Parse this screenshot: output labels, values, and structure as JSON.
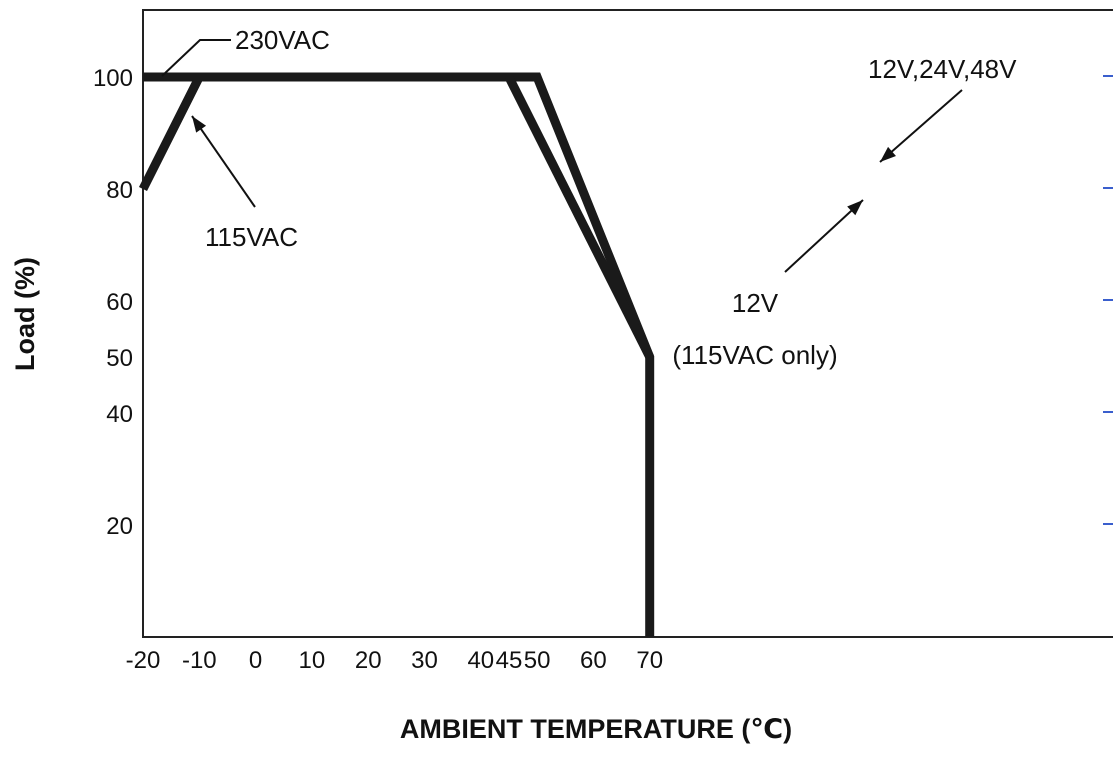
{
  "chart_data": {
    "type": "line",
    "xlabel": "AMBIENT TEMPERATURE (℃)",
    "ylabel": "Load (%)",
    "x_ticks": [
      "-20",
      "-10",
      "0",
      "10",
      "20",
      "30",
      "40",
      "45",
      "50",
      "60",
      "70"
    ],
    "y_ticks": [
      "100",
      "80",
      "60",
      "50",
      "40",
      "20"
    ],
    "xlim": [
      -20,
      72
    ],
    "ylim": [
      0,
      110
    ],
    "grid": false,
    "legend": "none",
    "series": [
      {
        "name": "230VAC",
        "x": [
          -20,
          50,
          70,
          70
        ],
        "y": [
          100,
          100,
          50,
          0
        ]
      },
      {
        "name": "115VAC",
        "x": [
          -20,
          -10,
          45
        ],
        "y": [
          80,
          100,
          100
        ]
      },
      {
        "name": "12V (115VAC only)",
        "x": [
          45,
          70
        ],
        "y": [
          100,
          50
        ]
      }
    ],
    "annotations": [
      {
        "text": "230VAC",
        "points_to": [
          -16,
          100
        ]
      },
      {
        "text": "115VAC",
        "points_to": [
          -12,
          93
        ]
      },
      {
        "text": "12V,24V,48V",
        "points_to": [
          56,
          87
        ]
      },
      {
        "text": "12V",
        "points_to": [
          59,
          83
        ]
      },
      {
        "text": "(115VAC only)"
      }
    ],
    "line_color": "#1a1a1a",
    "side_marker_color": "#3a5fcd"
  }
}
